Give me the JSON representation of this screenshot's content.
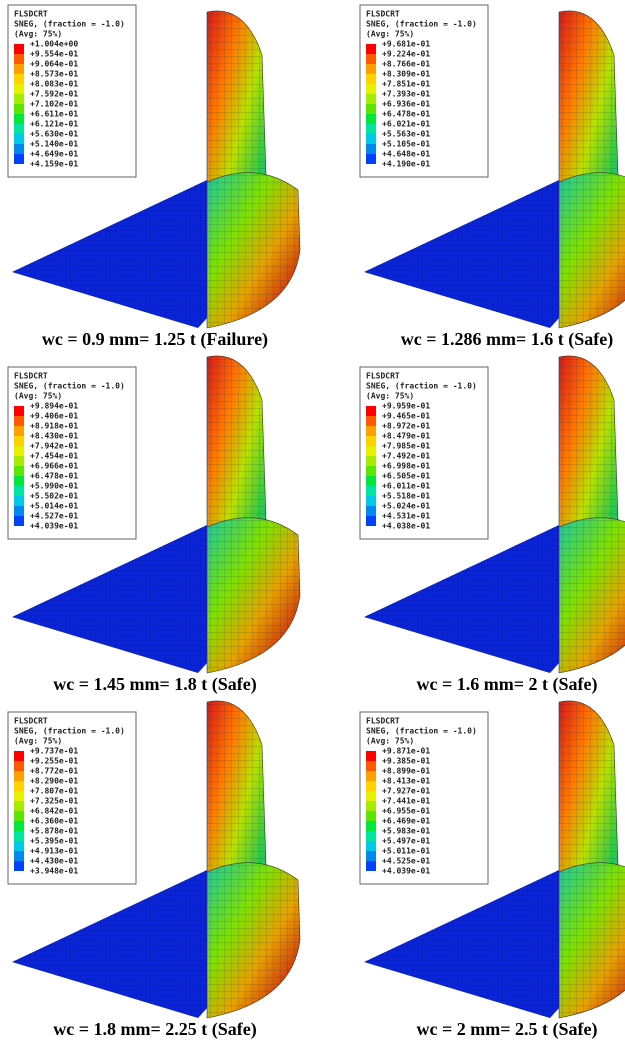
{
  "panels": [
    {
      "legend": {
        "title": "FLSDCRT",
        "variable": "SNEG, (fraction = -1.0)",
        "averaging": "(Avg: 75%)",
        "values": [
          "+1.004e+00",
          "+9.554e-01",
          "+9.064e-01",
          "+8.573e-01",
          "+8.083e-01",
          "+7.592e-01",
          "+7.102e-01",
          "+6.611e-01",
          "+6.121e-01",
          "+5.630e-01",
          "+5.140e-01",
          "+4.649e-01",
          "+4.159e-01"
        ]
      },
      "caption": "wc = 0.9 mm= 1.25 t (Failure)"
    },
    {
      "legend": {
        "title": "FLSDCRT",
        "variable": "SNEG, (fraction = -1.0)",
        "averaging": "(Avg: 75%)",
        "values": [
          "+9.681e-01",
          "+9.224e-01",
          "+8.766e-01",
          "+8.309e-01",
          "+7.851e-01",
          "+7.393e-01",
          "+6.936e-01",
          "+6.478e-01",
          "+6.021e-01",
          "+5.563e-01",
          "+5.105e-01",
          "+4.648e-01",
          "+4.190e-01"
        ]
      },
      "caption": "wc = 1.286 mm= 1.6 t (Safe)"
    },
    {
      "legend": {
        "title": "FLSDCRT",
        "variable": "SNEG, (fraction = -1.0)",
        "averaging": "(Avg: 75%)",
        "values": [
          "+9.894e-01",
          "+9.406e-01",
          "+8.918e-01",
          "+8.430e-01",
          "+7.942e-01",
          "+7.454e-01",
          "+6.966e-01",
          "+6.478e-01",
          "+5.990e-01",
          "+5.502e-01",
          "+5.014e-01",
          "+4.527e-01",
          "+4.039e-01"
        ]
      },
      "caption": "wc = 1.45 mm= 1.8 t (Safe)"
    },
    {
      "legend": {
        "title": "FLSDCRT",
        "variable": "SNEG, (fraction = -1.0)",
        "averaging": "(Avg: 75%)",
        "values": [
          "+9.959e-01",
          "+9.465e-01",
          "+8.972e-01",
          "+8.479e-01",
          "+7.985e-01",
          "+7.492e-01",
          "+6.998e-01",
          "+6.505e-01",
          "+6.011e-01",
          "+5.518e-01",
          "+5.024e-01",
          "+4.531e-01",
          "+4.038e-01"
        ]
      },
      "caption": "wc = 1.6 mm= 2 t (Safe)"
    },
    {
      "legend": {
        "title": "FLSDCRT",
        "variable": "SNEG, (fraction = -1.0)",
        "averaging": "(Avg: 75%)",
        "values": [
          "+9.737e-01",
          "+9.255e-01",
          "+8.772e-01",
          "+8.290e-01",
          "+7.807e-01",
          "+7.325e-01",
          "+6.842e-01",
          "+6.360e-01",
          "+5.878e-01",
          "+5.395e-01",
          "+4.913e-01",
          "+4.430e-01",
          "+3.948e-01"
        ]
      },
      "caption": "wc = 1.8 mm= 2.25 t (Safe)"
    },
    {
      "legend": {
        "title": "FLSDCRT",
        "variable": "SNEG, (fraction = -1.0)",
        "averaging": "(Avg: 75%)",
        "values": [
          "+9.871e-01",
          "+9.385e-01",
          "+8.899e-01",
          "+8.413e-01",
          "+7.927e-01",
          "+7.441e-01",
          "+6.955e-01",
          "+6.469e-01",
          "+5.983e-01",
          "+5.497e-01",
          "+5.011e-01",
          "+4.525e-01",
          "+4.039e-01"
        ]
      },
      "caption": "wc = 2 mm= 2.5 t (Safe)"
    }
  ]
}
